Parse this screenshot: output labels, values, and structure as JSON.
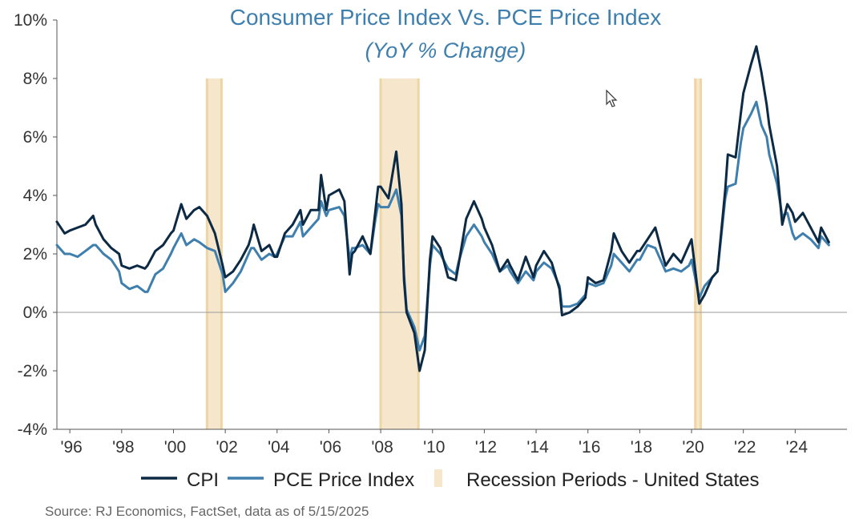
{
  "chart_data": {
    "type": "line",
    "title": "Consumer Price Index Vs. PCE Price Index",
    "subtitle": "(YoY % Change)",
    "ylim": [
      -4,
      10
    ],
    "y_tick_values": [
      -4,
      -2,
      0,
      2,
      4,
      6,
      8,
      10
    ],
    "y_tick_labels": [
      "-4%",
      "-2%",
      "0%",
      "2%",
      "4%",
      "6%",
      "8%",
      "10%"
    ],
    "xlim": [
      1995.5,
      2026.0
    ],
    "x_tick_years": [
      1996,
      1998,
      2000,
      2002,
      2004,
      2006,
      2008,
      2010,
      2012,
      2014,
      2016,
      2018,
      2020,
      2022,
      2024
    ],
    "x_tick_labels": [
      "'96",
      "'98",
      "'00",
      "'02",
      "'04",
      "'06",
      "'08",
      "'10",
      "'12",
      "'14",
      "'16",
      "'18",
      "'20",
      "'22",
      "'24"
    ],
    "recessions": [
      {
        "start": 2001.25,
        "end": 2001.9
      },
      {
        "start": 2007.95,
        "end": 2009.5
      },
      {
        "start": 2020.1,
        "end": 2020.4
      }
    ],
    "series": [
      {
        "name": "CPI",
        "color": "#0d2a45",
        "points": [
          [
            1995.5,
            3.1
          ],
          [
            1995.8,
            2.7
          ],
          [
            1996.0,
            2.8
          ],
          [
            1996.3,
            2.9
          ],
          [
            1996.6,
            3.0
          ],
          [
            1996.9,
            3.3
          ],
          [
            1997.0,
            3.0
          ],
          [
            1997.3,
            2.5
          ],
          [
            1997.6,
            2.2
          ],
          [
            1997.9,
            2.0
          ],
          [
            1998.0,
            1.6
          ],
          [
            1998.3,
            1.5
          ],
          [
            1998.6,
            1.6
          ],
          [
            1998.9,
            1.5
          ],
          [
            1999.0,
            1.6
          ],
          [
            1999.3,
            2.1
          ],
          [
            1999.6,
            2.3
          ],
          [
            1999.9,
            2.7
          ],
          [
            2000.0,
            2.8
          ],
          [
            2000.3,
            3.7
          ],
          [
            2000.5,
            3.2
          ],
          [
            2000.8,
            3.5
          ],
          [
            2001.0,
            3.6
          ],
          [
            2001.3,
            3.3
          ],
          [
            2001.6,
            2.7
          ],
          [
            2001.9,
            1.6
          ],
          [
            2002.0,
            1.2
          ],
          [
            2002.3,
            1.4
          ],
          [
            2002.6,
            1.8
          ],
          [
            2002.9,
            2.3
          ],
          [
            2003.0,
            2.6
          ],
          [
            2003.1,
            3.0
          ],
          [
            2003.4,
            2.1
          ],
          [
            2003.7,
            2.3
          ],
          [
            2003.9,
            1.9
          ],
          [
            2004.0,
            1.9
          ],
          [
            2004.3,
            2.7
          ],
          [
            2004.6,
            3.0
          ],
          [
            2004.9,
            3.5
          ],
          [
            2005.0,
            3.0
          ],
          [
            2005.3,
            3.5
          ],
          [
            2005.6,
            3.5
          ],
          [
            2005.7,
            4.7
          ],
          [
            2005.9,
            3.5
          ],
          [
            2006.0,
            4.0
          ],
          [
            2006.4,
            4.2
          ],
          [
            2006.6,
            3.8
          ],
          [
            2006.8,
            1.3
          ],
          [
            2006.9,
            2.0
          ],
          [
            2007.0,
            2.1
          ],
          [
            2007.3,
            2.6
          ],
          [
            2007.6,
            2.0
          ],
          [
            2007.8,
            3.5
          ],
          [
            2007.9,
            4.3
          ],
          [
            2008.0,
            4.3
          ],
          [
            2008.3,
            3.9
          ],
          [
            2008.6,
            5.5
          ],
          [
            2008.8,
            3.7
          ],
          [
            2008.9,
            1.1
          ],
          [
            2009.0,
            0.0
          ],
          [
            2009.3,
            -0.7
          ],
          [
            2009.5,
            -2.0
          ],
          [
            2009.7,
            -1.3
          ],
          [
            2009.9,
            1.8
          ],
          [
            2010.0,
            2.6
          ],
          [
            2010.3,
            2.2
          ],
          [
            2010.6,
            1.2
          ],
          [
            2010.9,
            1.1
          ],
          [
            2011.0,
            1.6
          ],
          [
            2011.3,
            3.2
          ],
          [
            2011.6,
            3.8
          ],
          [
            2011.9,
            3.2
          ],
          [
            2012.0,
            2.9
          ],
          [
            2012.3,
            2.3
          ],
          [
            2012.6,
            1.4
          ],
          [
            2012.9,
            1.8
          ],
          [
            2013.0,
            1.6
          ],
          [
            2013.3,
            1.1
          ],
          [
            2013.6,
            1.9
          ],
          [
            2013.9,
            1.2
          ],
          [
            2014.0,
            1.6
          ],
          [
            2014.3,
            2.1
          ],
          [
            2014.6,
            1.7
          ],
          [
            2014.9,
            0.8
          ],
          [
            2015.0,
            -0.1
          ],
          [
            2015.3,
            0.0
          ],
          [
            2015.6,
            0.2
          ],
          [
            2015.9,
            0.5
          ],
          [
            2016.0,
            1.2
          ],
          [
            2016.3,
            1.0
          ],
          [
            2016.6,
            1.1
          ],
          [
            2016.9,
            2.1
          ],
          [
            2017.0,
            2.7
          ],
          [
            2017.3,
            2.1
          ],
          [
            2017.6,
            1.7
          ],
          [
            2017.9,
            2.1
          ],
          [
            2018.0,
            2.1
          ],
          [
            2018.3,
            2.5
          ],
          [
            2018.6,
            2.9
          ],
          [
            2018.9,
            1.9
          ],
          [
            2019.0,
            1.6
          ],
          [
            2019.3,
            2.0
          ],
          [
            2019.6,
            1.7
          ],
          [
            2019.9,
            2.3
          ],
          [
            2020.0,
            2.5
          ],
          [
            2020.3,
            0.3
          ],
          [
            2020.5,
            0.6
          ],
          [
            2020.8,
            1.2
          ],
          [
            2021.0,
            1.4
          ],
          [
            2021.3,
            4.2
          ],
          [
            2021.4,
            5.4
          ],
          [
            2021.7,
            5.3
          ],
          [
            2021.9,
            6.8
          ],
          [
            2022.0,
            7.5
          ],
          [
            2022.3,
            8.5
          ],
          [
            2022.5,
            9.1
          ],
          [
            2022.7,
            8.2
          ],
          [
            2022.9,
            7.1
          ],
          [
            2023.0,
            6.4
          ],
          [
            2023.3,
            5.0
          ],
          [
            2023.5,
            3.0
          ],
          [
            2023.7,
            3.7
          ],
          [
            2023.9,
            3.4
          ],
          [
            2024.0,
            3.1
          ],
          [
            2024.3,
            3.4
          ],
          [
            2024.6,
            2.9
          ],
          [
            2024.9,
            2.4
          ],
          [
            2025.0,
            2.9
          ],
          [
            2025.3,
            2.4
          ]
        ]
      },
      {
        "name": "PCE Price Index",
        "color": "#3f7fae",
        "points": [
          [
            1995.5,
            2.3
          ],
          [
            1995.8,
            2.0
          ],
          [
            1996.0,
            2.0
          ],
          [
            1996.3,
            1.9
          ],
          [
            1996.6,
            2.1
          ],
          [
            1996.9,
            2.3
          ],
          [
            1997.0,
            2.3
          ],
          [
            1997.3,
            2.0
          ],
          [
            1997.6,
            1.8
          ],
          [
            1997.9,
            1.4
          ],
          [
            1998.0,
            1.0
          ],
          [
            1998.3,
            0.8
          ],
          [
            1998.6,
            0.9
          ],
          [
            1998.9,
            0.7
          ],
          [
            1999.0,
            0.7
          ],
          [
            1999.3,
            1.3
          ],
          [
            1999.6,
            1.5
          ],
          [
            1999.9,
            2.0
          ],
          [
            2000.0,
            2.2
          ],
          [
            2000.3,
            2.7
          ],
          [
            2000.5,
            2.3
          ],
          [
            2000.8,
            2.5
          ],
          [
            2001.0,
            2.4
          ],
          [
            2001.3,
            2.2
          ],
          [
            2001.6,
            2.1
          ],
          [
            2001.9,
            1.3
          ],
          [
            2002.0,
            0.7
          ],
          [
            2002.3,
            1.0
          ],
          [
            2002.6,
            1.4
          ],
          [
            2002.9,
            2.0
          ],
          [
            2003.0,
            2.2
          ],
          [
            2003.1,
            2.2
          ],
          [
            2003.4,
            1.8
          ],
          [
            2003.7,
            2.0
          ],
          [
            2003.9,
            1.9
          ],
          [
            2004.0,
            2.0
          ],
          [
            2004.3,
            2.6
          ],
          [
            2004.6,
            2.6
          ],
          [
            2004.9,
            3.1
          ],
          [
            2005.0,
            2.6
          ],
          [
            2005.3,
            2.9
          ],
          [
            2005.6,
            3.2
          ],
          [
            2005.7,
            3.8
          ],
          [
            2005.9,
            3.3
          ],
          [
            2006.0,
            3.5
          ],
          [
            2006.4,
            3.6
          ],
          [
            2006.6,
            3.3
          ],
          [
            2006.8,
            1.8
          ],
          [
            2006.9,
            2.2
          ],
          [
            2007.0,
            2.2
          ],
          [
            2007.3,
            2.3
          ],
          [
            2007.6,
            2.0
          ],
          [
            2007.8,
            3.2
          ],
          [
            2007.9,
            3.7
          ],
          [
            2008.0,
            3.6
          ],
          [
            2008.3,
            3.6
          ],
          [
            2008.6,
            4.2
          ],
          [
            2008.8,
            3.3
          ],
          [
            2008.9,
            1.3
          ],
          [
            2009.0,
            0.1
          ],
          [
            2009.3,
            -0.5
          ],
          [
            2009.5,
            -1.3
          ],
          [
            2009.7,
            -0.8
          ],
          [
            2009.9,
            1.6
          ],
          [
            2010.0,
            2.3
          ],
          [
            2010.3,
            2.0
          ],
          [
            2010.6,
            1.5
          ],
          [
            2010.9,
            1.3
          ],
          [
            2011.0,
            1.7
          ],
          [
            2011.3,
            2.6
          ],
          [
            2011.6,
            3.0
          ],
          [
            2011.9,
            2.6
          ],
          [
            2012.0,
            2.4
          ],
          [
            2012.3,
            2.0
          ],
          [
            2012.6,
            1.4
          ],
          [
            2012.9,
            1.6
          ],
          [
            2013.0,
            1.4
          ],
          [
            2013.3,
            1.0
          ],
          [
            2013.6,
            1.4
          ],
          [
            2013.9,
            1.1
          ],
          [
            2014.0,
            1.4
          ],
          [
            2014.3,
            1.7
          ],
          [
            2014.6,
            1.5
          ],
          [
            2014.9,
            0.9
          ],
          [
            2015.0,
            0.2
          ],
          [
            2015.3,
            0.2
          ],
          [
            2015.6,
            0.3
          ],
          [
            2015.9,
            0.6
          ],
          [
            2016.0,
            1.0
          ],
          [
            2016.3,
            0.9
          ],
          [
            2016.6,
            1.0
          ],
          [
            2016.9,
            1.6
          ],
          [
            2017.0,
            2.0
          ],
          [
            2017.3,
            1.7
          ],
          [
            2017.6,
            1.4
          ],
          [
            2017.9,
            1.8
          ],
          [
            2018.0,
            1.8
          ],
          [
            2018.3,
            2.3
          ],
          [
            2018.6,
            2.2
          ],
          [
            2018.9,
            1.6
          ],
          [
            2019.0,
            1.4
          ],
          [
            2019.3,
            1.5
          ],
          [
            2019.6,
            1.4
          ],
          [
            2019.9,
            1.6
          ],
          [
            2020.0,
            1.8
          ],
          [
            2020.3,
            0.5
          ],
          [
            2020.5,
            0.9
          ],
          [
            2020.8,
            1.2
          ],
          [
            2021.0,
            1.4
          ],
          [
            2021.3,
            3.9
          ],
          [
            2021.4,
            4.3
          ],
          [
            2021.7,
            4.4
          ],
          [
            2021.9,
            5.8
          ],
          [
            2022.0,
            6.3
          ],
          [
            2022.3,
            6.8
          ],
          [
            2022.5,
            7.2
          ],
          [
            2022.7,
            6.4
          ],
          [
            2022.9,
            6.0
          ],
          [
            2023.0,
            5.4
          ],
          [
            2023.3,
            4.4
          ],
          [
            2023.5,
            3.3
          ],
          [
            2023.7,
            3.4
          ],
          [
            2023.9,
            2.7
          ],
          [
            2024.0,
            2.5
          ],
          [
            2024.3,
            2.7
          ],
          [
            2024.6,
            2.5
          ],
          [
            2024.9,
            2.2
          ],
          [
            2025.0,
            2.6
          ],
          [
            2025.3,
            2.3
          ]
        ]
      }
    ],
    "legend": {
      "position": "bottom",
      "items": [
        {
          "label": "CPI",
          "color": "#0d2a45"
        },
        {
          "label": "PCE Price Index",
          "color": "#3f7fae"
        },
        {
          "label": "Recession Periods - United States",
          "color": "#f6e7cc"
        }
      ]
    },
    "source": "Source: RJ Economics, FactSet, data as of 5/15/2025"
  }
}
